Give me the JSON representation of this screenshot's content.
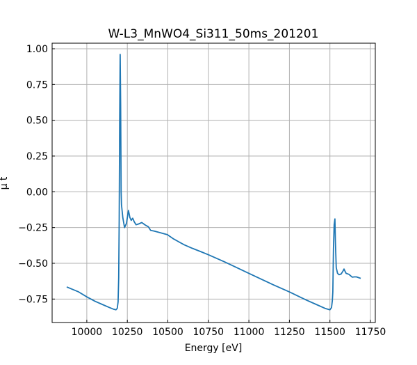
{
  "chart_data": {
    "type": "line",
    "title": "W-L3_MnWO4_Si311_50ms_201201",
    "xlabel": "Energy [eV]",
    "ylabel": "μ t",
    "xlim": [
      9786,
      11780
    ],
    "ylim": [
      -0.914,
      1.039
    ],
    "xticks": [
      10000,
      10250,
      10500,
      10750,
      11000,
      11250,
      11500,
      11750
    ],
    "yticks": [
      1.0,
      0.75,
      0.5,
      0.25,
      0.0,
      -0.25,
      -0.5,
      -0.75
    ],
    "xtick_labels": [
      "10000",
      "10250",
      "10500",
      "10750",
      "11000",
      "11250",
      "11500",
      "11750"
    ],
    "ytick_labels": [
      "1.00",
      "0.75",
      "0.50",
      "0.25",
      "0.00",
      "−0.25",
      "−0.50",
      "−0.75"
    ],
    "grid": true,
    "series": [
      {
        "name": "mu_t",
        "color": "#1f77b4",
        "x": [
          9876,
          9950,
          10000,
          10050,
          10100,
          10140,
          10163,
          10180,
          10188,
          10193,
          10197,
          10200,
          10203,
          10206,
          10209,
          10212,
          10214,
          10222,
          10233,
          10245,
          10257,
          10266,
          10274,
          10283,
          10293,
          10304,
          10320,
          10339,
          10364,
          10380,
          10394,
          10416,
          10450,
          10497,
          10536,
          10600,
          10650,
          10707,
          10750,
          10850,
          11000,
          11150,
          11250,
          11351,
          11420,
          11470,
          11500,
          11510,
          11515,
          11518,
          11522,
          11526,
          11531,
          11534,
          11539,
          11547,
          11556,
          11569,
          11580,
          11587,
          11593,
          11600,
          11617,
          11638,
          11650,
          11664,
          11690
        ],
        "y": [
          -0.665,
          -0.7,
          -0.735,
          -0.765,
          -0.79,
          -0.81,
          -0.82,
          -0.825,
          -0.815,
          -0.77,
          -0.6,
          -0.2,
          0.5,
          0.96,
          0.6,
          0.0,
          -0.09,
          -0.18,
          -0.25,
          -0.22,
          -0.13,
          -0.18,
          -0.2,
          -0.185,
          -0.21,
          -0.23,
          -0.225,
          -0.215,
          -0.235,
          -0.245,
          -0.27,
          -0.275,
          -0.285,
          -0.3,
          -0.33,
          -0.37,
          -0.395,
          -0.42,
          -0.44,
          -0.49,
          -0.57,
          -0.65,
          -0.7,
          -0.755,
          -0.79,
          -0.815,
          -0.825,
          -0.81,
          -0.76,
          -0.7,
          -0.4,
          -0.23,
          -0.19,
          -0.35,
          -0.53,
          -0.57,
          -0.58,
          -0.575,
          -0.555,
          -0.54,
          -0.555,
          -0.57,
          -0.577,
          -0.597,
          -0.595,
          -0.595,
          -0.605
        ]
      }
    ]
  }
}
